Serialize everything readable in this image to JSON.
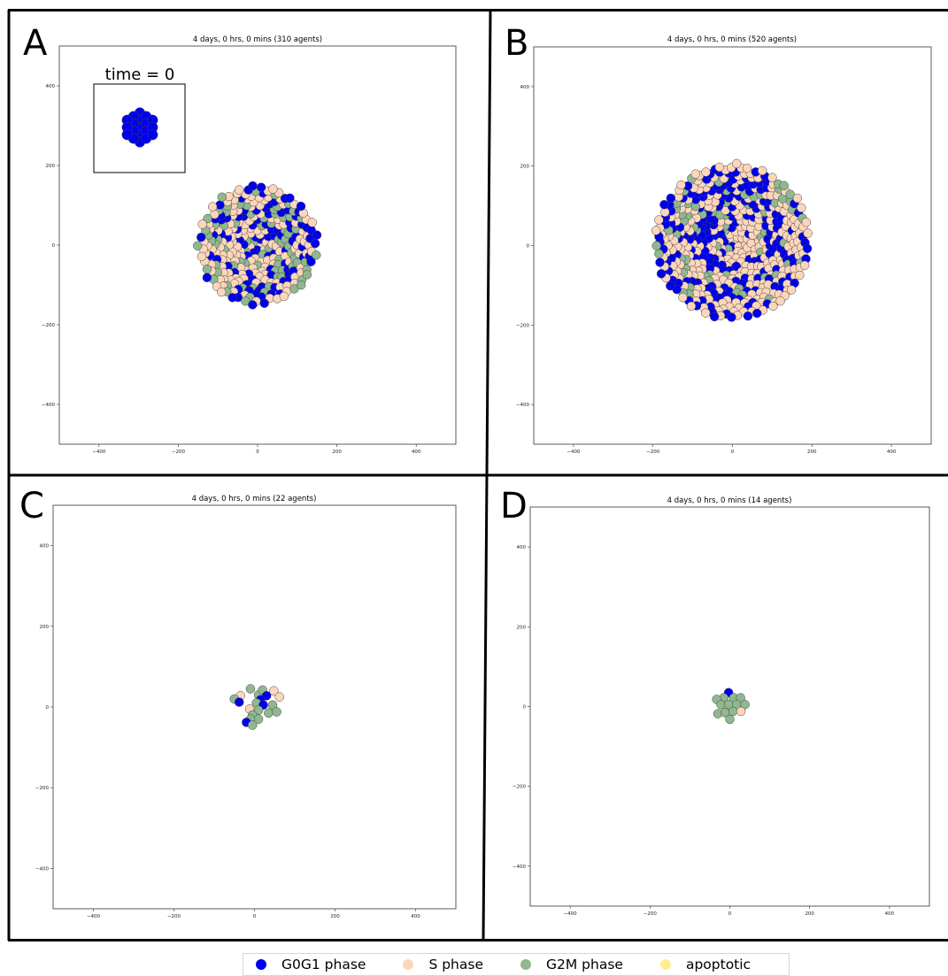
{
  "colors": {
    "G0G1": "#0000ee",
    "S": "#fcd6bb",
    "G2M": "#8fb88f",
    "apoptotic": "#fdee95",
    "cell_edge": "#444444"
  },
  "chart_data": [
    {
      "type": "scatter",
      "panel": "A",
      "title": "4 days, 0 hrs, 0 mins (310 agents)",
      "xlim": [
        -500,
        500
      ],
      "ylim": [
        -500,
        500
      ],
      "xticks": [
        -400,
        -200,
        0,
        200,
        400
      ],
      "yticks": [
        400,
        200,
        0,
        -200,
        -400
      ],
      "cluster": {
        "center": [
          0,
          0
        ],
        "radius": 150,
        "count": 310,
        "fractions": {
          "G0G1": 0.32,
          "S": 0.48,
          "G2M": 0.2
        },
        "seed": 11
      },
      "inset": {
        "label": "time = 0",
        "count": 19,
        "phase": "G0G1"
      }
    },
    {
      "type": "scatter",
      "panel": "B",
      "title": "4 days, 0 hrs, 0 mins (520 agents)",
      "xlim": [
        -500,
        500
      ],
      "ylim": [
        -500,
        500
      ],
      "xticks": [
        -400,
        -200,
        0,
        200,
        400
      ],
      "yticks": [
        400,
        200,
        0,
        -200,
        -400
      ],
      "cluster": {
        "center": [
          0,
          10
        ],
        "radius": 195,
        "count": 520,
        "fractions": {
          "G0G1": 0.36,
          "S": 0.5,
          "G2M": 0.14
        },
        "seed": 23
      }
    },
    {
      "type": "scatter",
      "panel": "C",
      "title": "4 days, 0 hrs, 0 mins (22 agents)",
      "xlim": [
        -500,
        500
      ],
      "ylim": [
        -500,
        500
      ],
      "xticks": [
        -400,
        -200,
        0,
        200,
        400
      ],
      "yticks": [
        400,
        200,
        0,
        -200,
        -400
      ],
      "points": [
        {
          "x": 10,
          "y": 30,
          "phase": "G2M"
        },
        {
          "x": -10,
          "y": 45,
          "phase": "G2M"
        },
        {
          "x": 20,
          "y": 42,
          "phase": "G2M"
        },
        {
          "x": 48,
          "y": 40,
          "phase": "S"
        },
        {
          "x": 62,
          "y": 25,
          "phase": "S"
        },
        {
          "x": 30,
          "y": 28,
          "phase": "G0G1"
        },
        {
          "x": 15,
          "y": 18,
          "phase": "G0G1"
        },
        {
          "x": -35,
          "y": 28,
          "phase": "S"
        },
        {
          "x": -50,
          "y": 20,
          "phase": "G2M"
        },
        {
          "x": -38,
          "y": 12,
          "phase": "G0G1"
        },
        {
          "x": 5,
          "y": 10,
          "phase": "G2M"
        },
        {
          "x": 45,
          "y": 5,
          "phase": "G2M"
        },
        {
          "x": 22,
          "y": 5,
          "phase": "G0G1"
        },
        {
          "x": -12,
          "y": -5,
          "phase": "S"
        },
        {
          "x": 10,
          "y": -8,
          "phase": "G2M"
        },
        {
          "x": 35,
          "y": -15,
          "phase": "G2M"
        },
        {
          "x": 55,
          "y": -12,
          "phase": "G2M"
        },
        {
          "x": -5,
          "y": -20,
          "phase": "G2M"
        },
        {
          "x": 10,
          "y": -30,
          "phase": "G2M"
        },
        {
          "x": -10,
          "y": -30,
          "phase": "G2M"
        },
        {
          "x": -20,
          "y": -38,
          "phase": "G0G1"
        },
        {
          "x": -5,
          "y": -45,
          "phase": "G2M"
        }
      ]
    },
    {
      "type": "scatter",
      "panel": "D",
      "title": "4 days, 0 hrs, 0 mins (14 agents)",
      "xlim": [
        -500,
        500
      ],
      "ylim": [
        -500,
        500
      ],
      "xticks": [
        -400,
        -200,
        0,
        200,
        400
      ],
      "yticks": [
        400,
        200,
        0,
        -200,
        -400
      ],
      "points": [
        {
          "x": -3,
          "y": 35,
          "phase": "G0G1"
        },
        {
          "x": -15,
          "y": 22,
          "phase": "G2M"
        },
        {
          "x": 10,
          "y": 22,
          "phase": "G2M"
        },
        {
          "x": 27,
          "y": 22,
          "phase": "G2M"
        },
        {
          "x": -33,
          "y": 18,
          "phase": "G2M"
        },
        {
          "x": -22,
          "y": 5,
          "phase": "G2M"
        },
        {
          "x": -3,
          "y": 5,
          "phase": "G2M"
        },
        {
          "x": 17,
          "y": 5,
          "phase": "G2M"
        },
        {
          "x": 38,
          "y": 5,
          "phase": "G2M"
        },
        {
          "x": -30,
          "y": -18,
          "phase": "G2M"
        },
        {
          "x": -12,
          "y": -15,
          "phase": "G2M"
        },
        {
          "x": 8,
          "y": -12,
          "phase": "G2M"
        },
        {
          "x": 28,
          "y": -12,
          "phase": "S"
        },
        {
          "x": 0,
          "y": -32,
          "phase": "G2M"
        }
      ]
    }
  ],
  "legend": [
    {
      "name": "G0G1 phase",
      "color": "#0000ee"
    },
    {
      "name": "S phase",
      "color": "#fcd6bb"
    },
    {
      "name": "G2M phase",
      "color": "#8fb88f"
    },
    {
      "name": "apoptotic",
      "color": "#fdee95"
    }
  ]
}
